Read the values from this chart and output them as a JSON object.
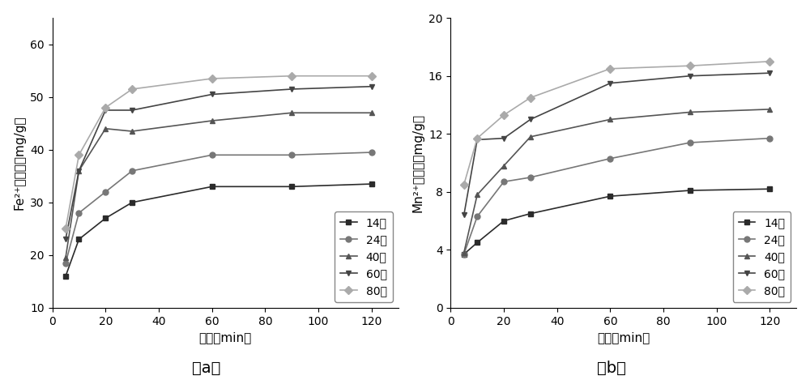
{
  "time_points": [
    5,
    10,
    20,
    30,
    60,
    90,
    120
  ],
  "fe_data": {
    "14目": [
      16,
      23,
      27,
      30,
      33,
      33,
      33.5
    ],
    "24目": [
      18.5,
      28,
      32,
      36,
      39,
      39,
      39.5
    ],
    "40目": [
      19.5,
      36,
      44,
      43.5,
      45.5,
      47,
      47
    ],
    "60目": [
      23,
      36,
      47.5,
      47.5,
      50.5,
      51.5,
      52
    ],
    "80目": [
      25,
      39,
      48,
      51.5,
      53.5,
      54,
      54
    ]
  },
  "mn_data": {
    "14目": [
      3.7,
      4.5,
      6.0,
      6.5,
      7.7,
      8.1,
      8.2
    ],
    "24目": [
      3.7,
      6.3,
      8.7,
      9.0,
      10.3,
      11.4,
      11.7
    ],
    "40目": [
      3.8,
      7.8,
      9.8,
      11.8,
      13.0,
      13.5,
      13.7
    ],
    "60目": [
      6.4,
      11.6,
      11.7,
      13.0,
      15.5,
      16.0,
      16.2
    ],
    "80目": [
      8.5,
      11.7,
      13.3,
      14.5,
      16.5,
      16.7,
      17.0
    ]
  },
  "series_labels": [
    "14目",
    "24目",
    "40目",
    "60目",
    "80目"
  ],
  "fe_ylabel": "Fe²⁺吸附量（mg/g）",
  "mn_ylabel": "Mn²⁺吸附量（mg/g）",
  "xlabel": "时间（min）",
  "fe_ylim": [
    10,
    65
  ],
  "fe_yticks": [
    10,
    20,
    30,
    40,
    50,
    60
  ],
  "mn_ylim": [
    0,
    20
  ],
  "mn_yticks": [
    0,
    4,
    8,
    12,
    16,
    20
  ],
  "xlim": [
    0,
    130
  ],
  "xticks": [
    0,
    20,
    40,
    60,
    80,
    100,
    120
  ],
  "label_a": "（a）",
  "label_b": "（b）",
  "legend_fontsize": 10,
  "axis_fontsize": 11,
  "tick_fontsize": 10,
  "label_fontsize": 14
}
